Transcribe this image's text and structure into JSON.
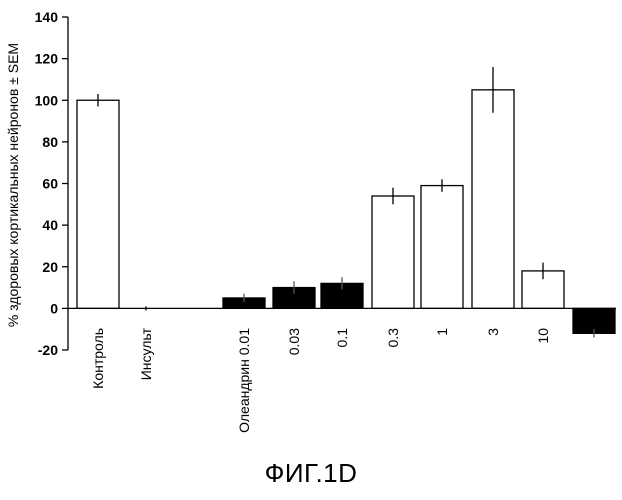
{
  "chart_data": {
    "type": "bar",
    "ylabel": "% здоровых кортикальных нейронов ± SEM",
    "ylim": [
      -20,
      140
    ],
    "yticks": [
      -20,
      0,
      20,
      40,
      60,
      80,
      100,
      120,
      140
    ],
    "category_labels": [
      "Контроль",
      "Инсульт",
      "Олеандрин 0.01",
      "0.03",
      "0.1",
      "0.3",
      "1",
      "3",
      "10"
    ],
    "bars": [
      {
        "category": "Контроль",
        "value": 100,
        "error": 3,
        "fill": "white"
      },
      {
        "category": "Инсульт",
        "value": 0,
        "error": 0,
        "fill": "white"
      },
      {
        "category": "Олеандрин 0.01",
        "value": 5,
        "error": 2,
        "fill": "black"
      },
      {
        "category": "0.03",
        "value": 10,
        "error": 3,
        "fill": "black"
      },
      {
        "category": "0.1",
        "value": 12,
        "error": 3,
        "fill": "black"
      },
      {
        "category": "0.3",
        "value": 54,
        "error": 4,
        "fill": "white"
      },
      {
        "category": "1",
        "value": 59,
        "error": 3,
        "fill": "white"
      },
      {
        "category": "3",
        "value": 105,
        "error": 11,
        "fill": "white"
      },
      {
        "category": "10",
        "value": 18,
        "error": 4,
        "fill": "white"
      },
      {
        "category": "",
        "value": -12,
        "error": 2,
        "fill": "black"
      }
    ],
    "grid": false
  },
  "figure": {
    "caption": "ФИГ.1D"
  }
}
